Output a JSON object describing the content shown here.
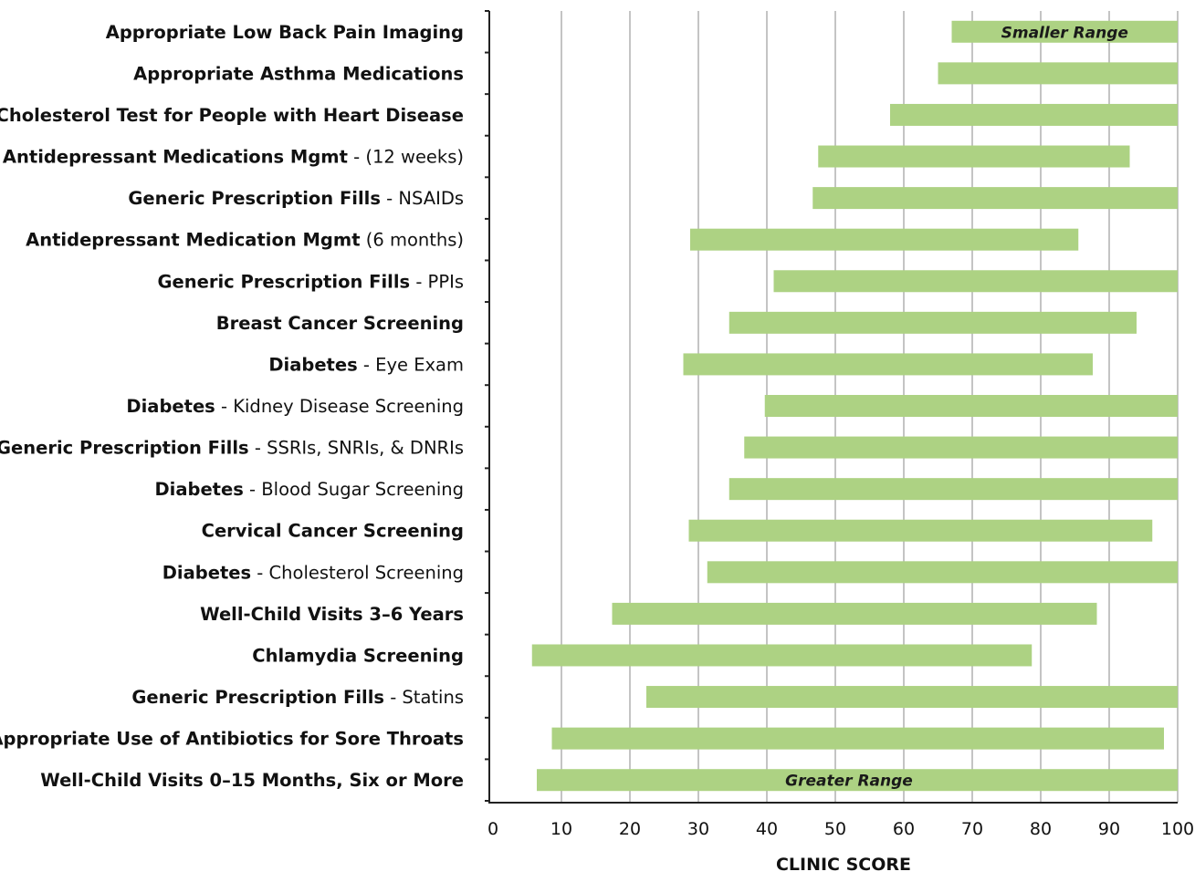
{
  "chart_data": {
    "type": "bar",
    "orientation": "horizontal-range",
    "title": "",
    "xlabel": "CLINIC SCORE",
    "ylabel": "",
    "xlim": [
      0,
      100
    ],
    "x_ticks": [
      0,
      10,
      20,
      30,
      40,
      50,
      60,
      70,
      80,
      90,
      100
    ],
    "grid": "vertical",
    "bar_color": "#add283",
    "categories": [
      {
        "bold": "Appropriate Low Back Pain Imaging",
        "rest": "",
        "min": 67,
        "max": 100
      },
      {
        "bold": "Appropriate Asthma Medications",
        "rest": "",
        "min": 65,
        "max": 100
      },
      {
        "bold": "Cholesterol Test for People with Heart Disease",
        "rest": "",
        "min": 58,
        "max": 100
      },
      {
        "bold": "Antidepressant Medications Mgmt",
        "rest": " - (12 weeks)",
        "min": 47.5,
        "max": 93
      },
      {
        "bold": "Generic Prescription Fills",
        "rest": " - NSAIDs",
        "min": 46.7,
        "max": 100
      },
      {
        "bold": "Antidepressant Medication Mgmt",
        "rest": " (6 months)",
        "min": 28.8,
        "max": 85.5
      },
      {
        "bold": "Generic Prescription Fills",
        "rest": " - PPIs",
        "min": 41,
        "max": 100
      },
      {
        "bold": "Breast Cancer Screening",
        "rest": "",
        "min": 34.5,
        "max": 94
      },
      {
        "bold": "Diabetes",
        "rest": " - Eye Exam",
        "min": 27.8,
        "max": 87.6
      },
      {
        "bold": "Diabetes",
        "rest": " - Kidney Disease Screening",
        "min": 39.7,
        "max": 100
      },
      {
        "bold": "Generic Prescription Fills",
        "rest": " - SSRIs, SNRIs, & DNRIs",
        "min": 36.7,
        "max": 100
      },
      {
        "bold": "Diabetes",
        "rest": " - Blood Sugar Screening",
        "min": 34.5,
        "max": 100
      },
      {
        "bold": "Cervical Cancer Screening",
        "rest": "",
        "min": 28.6,
        "max": 96.3
      },
      {
        "bold": "Diabetes",
        "rest": " - Cholesterol Screening",
        "min": 31.3,
        "max": 100
      },
      {
        "bold": "Well-Child Visits 3–6 Years",
        "rest": "",
        "min": 17.4,
        "max": 88.2
      },
      {
        "bold": "Chlamydia Screening",
        "rest": "",
        "min": 5.7,
        "max": 78.7
      },
      {
        "bold": "Generic Prescription Fills",
        "rest": " - Statins",
        "min": 22.4,
        "max": 100
      },
      {
        "bold": "Appropriate Use of Antibiotics for Sore Throats",
        "rest": "",
        "min": 8.6,
        "max": 98
      },
      {
        "bold": "Well-Child Visits 0–15 Months, Six or More",
        "rest": "",
        "min": 6.4,
        "max": 100
      }
    ],
    "annotations": [
      {
        "text": "Smaller Range",
        "row": 0
      },
      {
        "text": "Greater Range",
        "row": 18
      }
    ]
  }
}
